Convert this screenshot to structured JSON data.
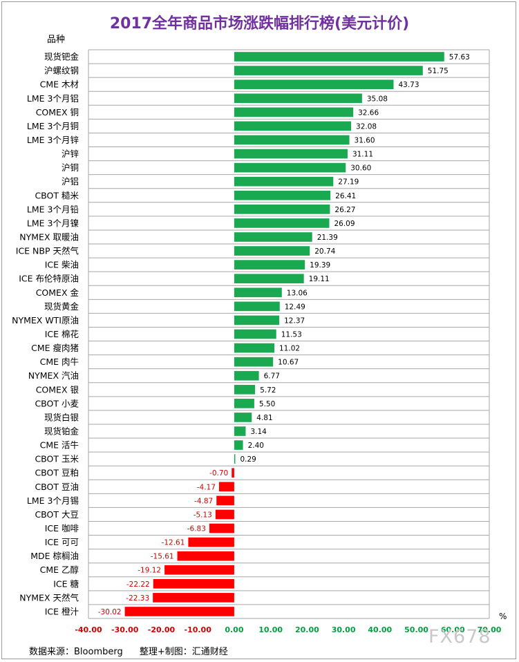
{
  "header": {
    "title": "2017全年商品市场涨跌幅排行榜(美元计价)",
    "category_header": "品种",
    "unit": "%"
  },
  "footer": {
    "source": "数据来源：Bloomberg",
    "credit": "整理+制图：汇通财经"
  },
  "watermark": "FX678",
  "colors": {
    "positive": "#1aa850",
    "negative": "#ff0000",
    "positive_label": "#00a040",
    "negative_label": "#d00000",
    "grid": "#a6a6a6"
  },
  "chart_data": {
    "type": "bar",
    "orientation": "horizontal",
    "title": "2017全年商品市场涨跌幅排行榜(美元计价)",
    "ylabel": "品种",
    "xlabel": "%",
    "xlim": [
      -40,
      70
    ],
    "xticks": [
      "-40.00",
      "-30.00",
      "-20.00",
      "-10.00",
      "0.00",
      "10.00",
      "20.00",
      "30.00",
      "40.00",
      "50.00",
      "60.00",
      "70.00"
    ],
    "grid": true,
    "categories": [
      "现货钯金",
      "沪螺纹钢",
      "CME 木材",
      "LME 3个月铝",
      "COMEX 铜",
      "LME 3个月铜",
      "LME 3个月锌",
      "沪锌",
      "沪铜",
      "沪铝",
      "CBOT 糙米",
      "LME 3个月铅",
      "LME 3个月镍",
      "NYMEX 取暖油",
      "ICE NBP 天然气",
      "ICE 柴油",
      "ICE 布伦特原油",
      "COMEX 金",
      "现货黄金",
      "NYMEX WTI原油",
      "ICE 棉花",
      "CME 瘦肉猪",
      "CME 肉牛",
      "NYMEX 汽油",
      "COMEX 银",
      "CBOT 小麦",
      "现货白银",
      "现货铂金",
      "CME 活牛",
      "CBOT 玉米",
      "CBOT 豆粕",
      "CBOT 豆油",
      "LME 3个月锡",
      "CBOT 大豆",
      "ICE 咖啡",
      "ICE 可可",
      "MDE 棕榈油",
      "CME 乙醇",
      "ICE 糖",
      "NYMEX 天然气",
      "ICE 橙汁"
    ],
    "values": [
      57.63,
      51.75,
      43.73,
      35.08,
      32.66,
      32.08,
      31.6,
      31.11,
      30.6,
      27.19,
      26.41,
      26.27,
      26.09,
      21.39,
      20.74,
      19.39,
      19.11,
      13.06,
      12.49,
      12.37,
      11.53,
      11.02,
      10.67,
      6.77,
      5.72,
      5.5,
      4.81,
      3.14,
      2.4,
      0.29,
      -0.7,
      -4.17,
      -4.87,
      -5.13,
      -6.83,
      -12.61,
      -15.61,
      -19.12,
      -22.22,
      -22.33,
      -30.02
    ],
    "value_labels": [
      "57.63",
      "51.75",
      "43.73",
      "35.08",
      "32.66",
      "32.08",
      "31.60",
      "31.11",
      "30.60",
      "27.19",
      "26.41",
      "26.27",
      "26.09",
      "21.39",
      "20.74",
      "19.39",
      "19.11",
      "13.06",
      "12.49",
      "12.37",
      "11.53",
      "11.02",
      "10.67",
      "6.77",
      "5.72",
      "5.50",
      "4.81",
      "3.14",
      "2.40",
      "0.29",
      "-0.70",
      "-4.17",
      "-4.87",
      "-5.13",
      "-6.83",
      "-12.61",
      "-15.61",
      "-19.12",
      "-22.22",
      "-22.33",
      "-30.02"
    ]
  }
}
